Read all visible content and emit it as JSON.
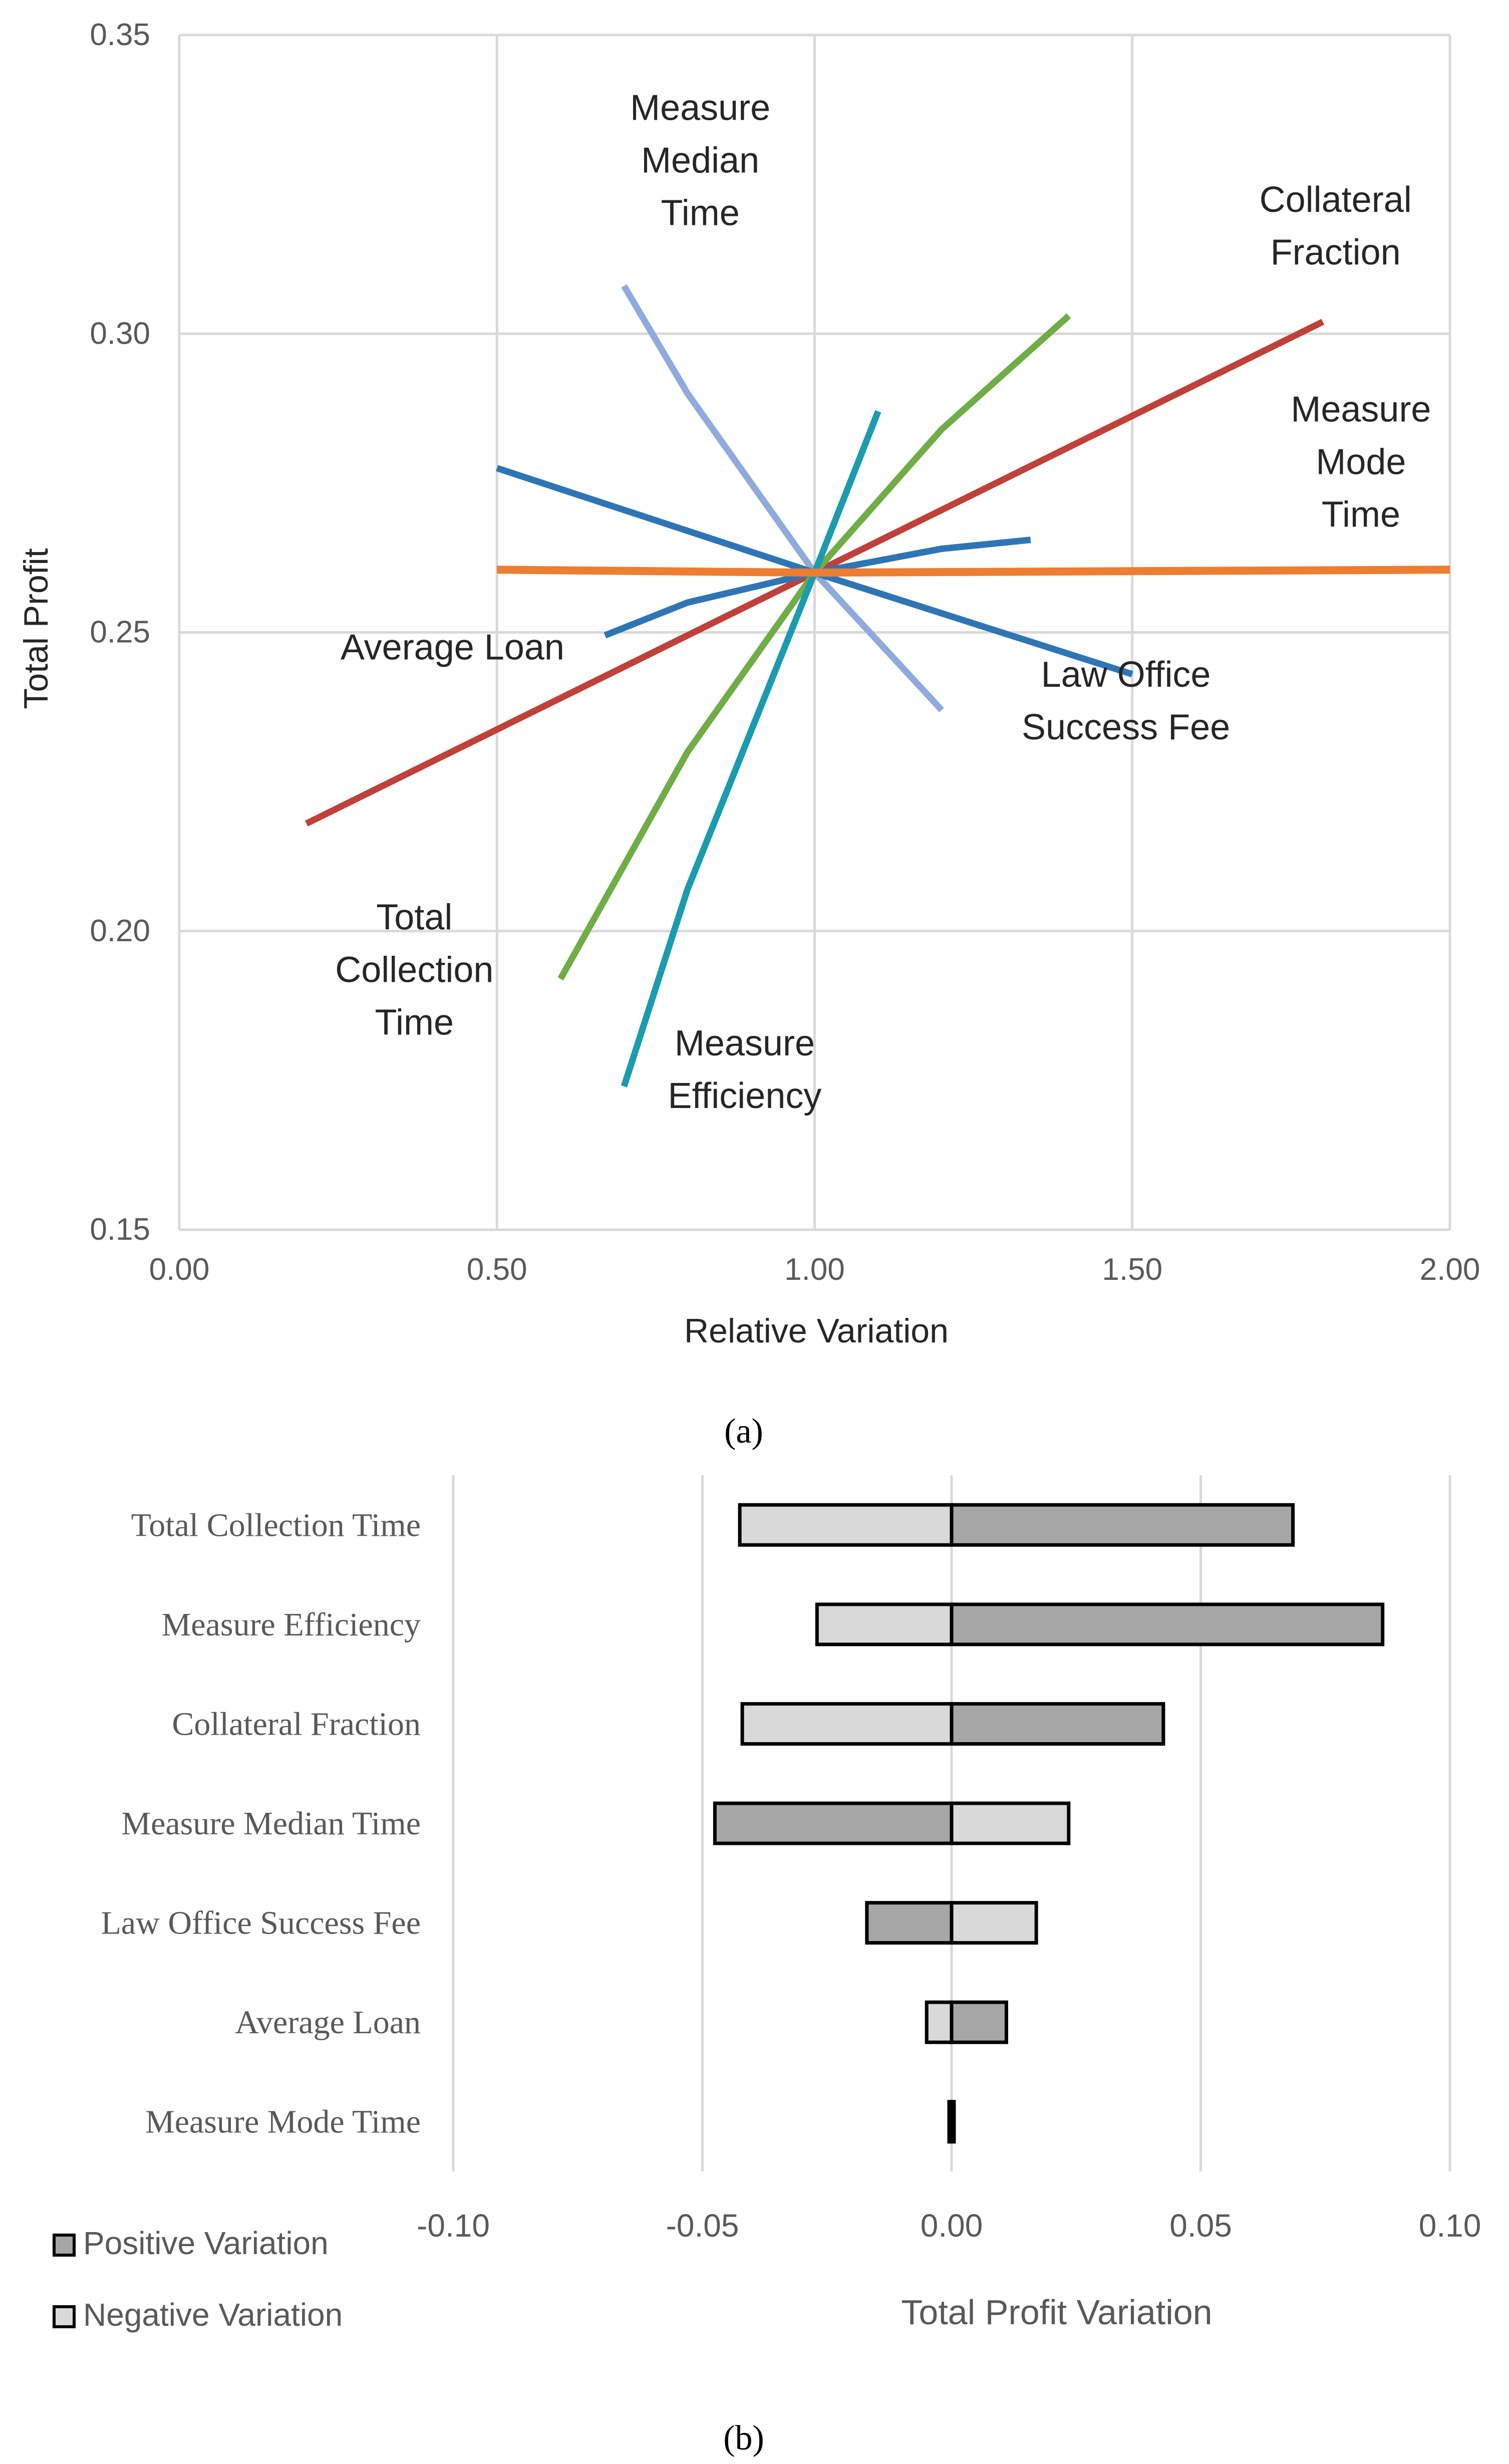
{
  "chart_data": [
    {
      "type": "line",
      "panel_caption": "(a)",
      "xlabel": "Relative Variation",
      "ylabel": "Total Profit",
      "xlim": [
        0,
        2
      ],
      "ylim": [
        0.15,
        0.35
      ],
      "x_ticks": [
        "0.00",
        "0.50",
        "1.00",
        "1.50",
        "2.00"
      ],
      "y_ticks": [
        "0.15",
        "0.20",
        "0.25",
        "0.30",
        "0.35"
      ],
      "grid": true,
      "series": [
        {
          "name": "Measure Median Time",
          "color": "#8FAADC",
          "label_lines": [
            "Measure",
            "Median",
            "Time"
          ],
          "x": [
            0.7,
            0.8,
            1.0,
            1.2
          ],
          "y": [
            0.308,
            0.29,
            0.26,
            0.237
          ]
        },
        {
          "name": "Collateral Fraction",
          "color": "#C0413A",
          "label_lines": [
            "Collateral",
            "Fraction"
          ],
          "x": [
            0.2,
            1.0,
            1.8
          ],
          "y": [
            0.218,
            0.26,
            0.302
          ]
        },
        {
          "name": "Measure Mode Time",
          "color": "#ED7D31",
          "label_lines": [
            "Measure",
            "Mode",
            "Time"
          ],
          "x": [
            0.5,
            1.0,
            2.0
          ],
          "y": [
            0.2605,
            0.26,
            0.2605
          ]
        },
        {
          "name": "Average Loan",
          "color": "#2E75B6",
          "label_lines": [
            "Average Loan"
          ],
          "x": [
            0.67,
            0.8,
            1.0,
            1.2,
            1.34
          ],
          "y": [
            0.2495,
            0.255,
            0.26,
            0.264,
            0.2655
          ]
        },
        {
          "name": "Law Office Success Fee",
          "color": "#2E75B6",
          "label_lines": [
            "Law Office",
            "Success Fee"
          ],
          "x": [
            0.5,
            1.0,
            1.5
          ],
          "y": [
            0.2775,
            0.26,
            0.243
          ]
        },
        {
          "name": "Total Collection Time",
          "color": "#70AD47",
          "label_lines": [
            "Total",
            "Collection",
            "Time"
          ],
          "x": [
            0.6,
            0.8,
            1.0,
            1.2,
            1.4
          ],
          "y": [
            0.192,
            0.23,
            0.26,
            0.284,
            0.303
          ]
        },
        {
          "name": "Measure Efficiency",
          "color": "#1A9BB0",
          "label_lines": [
            "Measure",
            "Efficiency"
          ],
          "x": [
            0.7,
            0.8,
            1.0,
            1.1
          ],
          "y": [
            0.174,
            0.207,
            0.26,
            0.287
          ]
        }
      ]
    },
    {
      "type": "bar",
      "orientation": "horizontal",
      "panel_caption": "(b)",
      "xlabel": "Total Profit Variation",
      "xlim": [
        -0.1,
        0.1
      ],
      "x_ticks": [
        "-0.10",
        "-0.05",
        "0.00",
        "0.05",
        "0.10"
      ],
      "grid": true,
      "legend_position": "bottom-left",
      "legend": [
        {
          "name": "Positive Variation",
          "color": "#A6A6A6"
        },
        {
          "name": "Negative Variation",
          "color": "#D9D9D9"
        }
      ],
      "categories": [
        "Total Collection Time",
        "Measure Efficiency",
        "Collateral Fraction",
        "Measure Median Time",
        "Law Office Success Fee",
        "Average Loan",
        "Measure Mode Time"
      ],
      "series": [
        {
          "name": "Positive Variation",
          "color": "#A6A6A6",
          "values": [
            0.0685,
            0.0865,
            0.0425,
            -0.0475,
            -0.017,
            0.011,
            0.0005
          ]
        },
        {
          "name": "Negative Variation",
          "color": "#D9D9D9",
          "values": [
            -0.0425,
            -0.027,
            -0.042,
            0.0235,
            0.017,
            -0.005,
            -0.0005
          ]
        }
      ]
    }
  ]
}
